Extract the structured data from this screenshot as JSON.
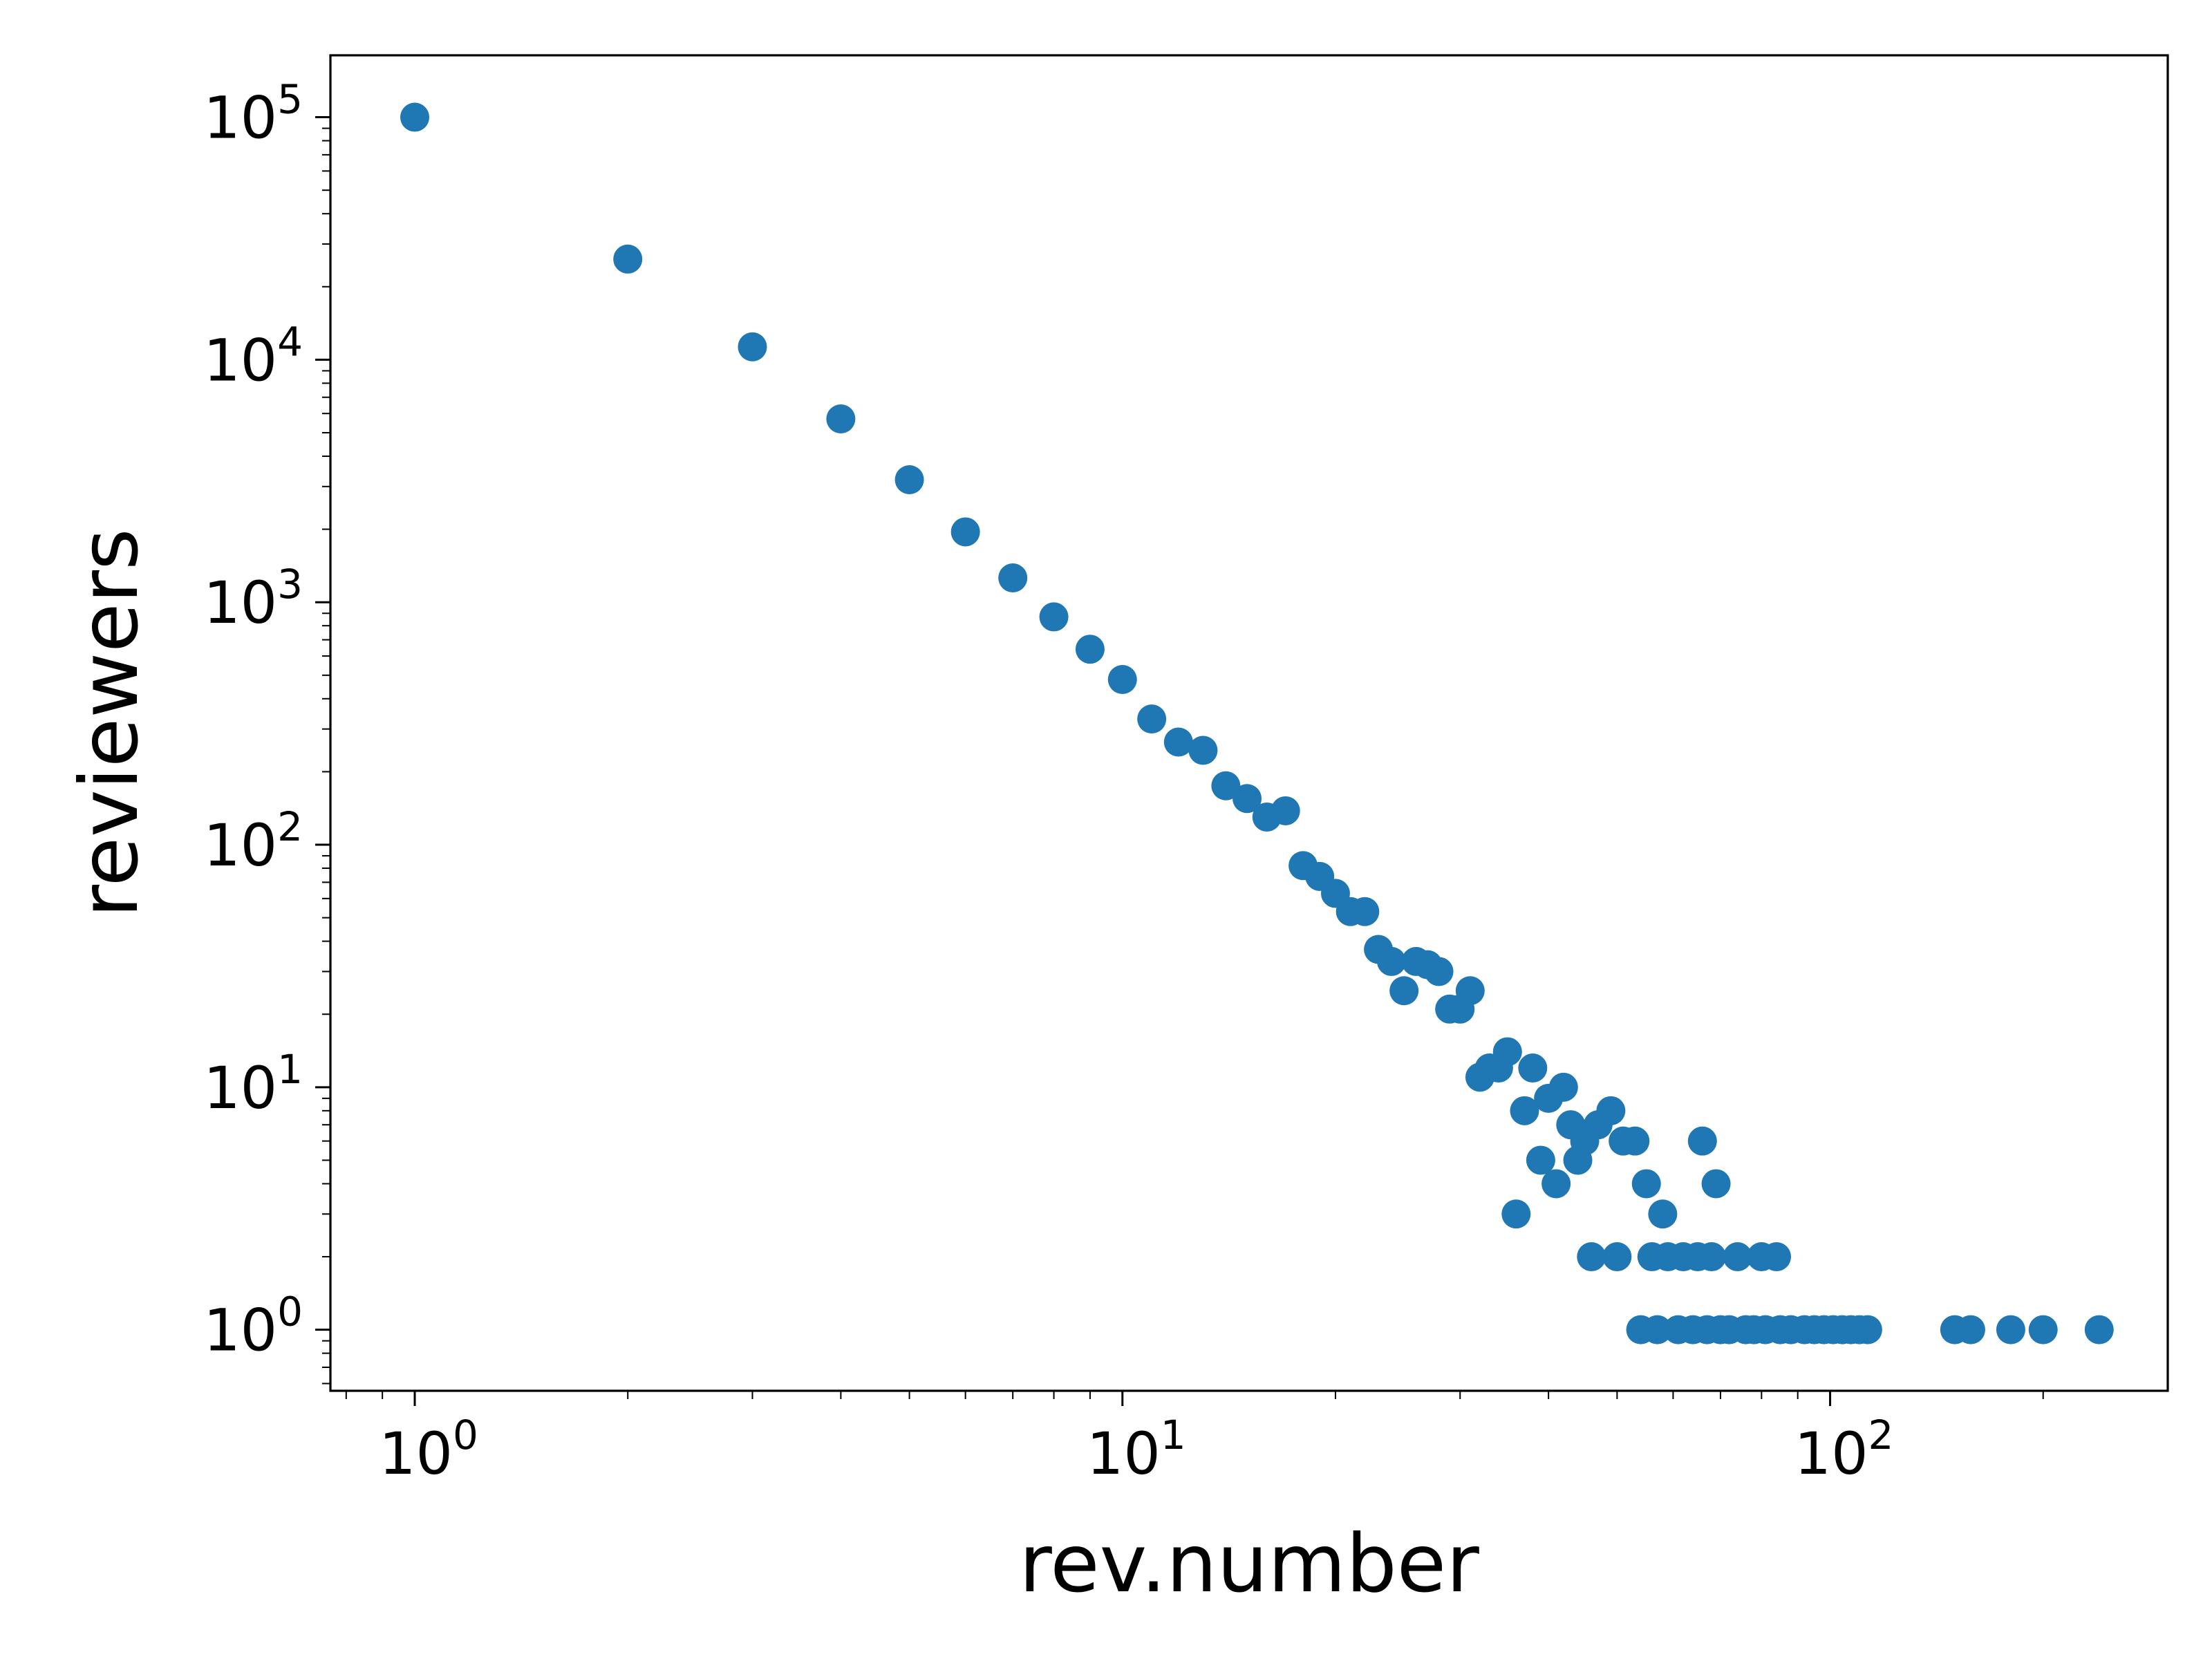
{
  "chart_data": {
    "type": "scatter",
    "xlabel": "rev.number",
    "ylabel": "reviewers",
    "xscale": "log",
    "yscale": "log",
    "xlim": [
      0.76,
      300
    ],
    "ylim": [
      0.56,
      180000
    ],
    "grid": false,
    "x_ticks": [
      {
        "value": 1,
        "base": "10",
        "exp": "0"
      },
      {
        "value": 10,
        "base": "10",
        "exp": "1"
      },
      {
        "value": 100,
        "base": "10",
        "exp": "2"
      }
    ],
    "y_ticks": [
      {
        "value": 1,
        "base": "10",
        "exp": "0"
      },
      {
        "value": 10,
        "base": "10",
        "exp": "1"
      },
      {
        "value": 100,
        "base": "10",
        "exp": "2"
      },
      {
        "value": 1000,
        "base": "10",
        "exp": "3"
      },
      {
        "value": 10000,
        "base": "10",
        "exp": "4"
      },
      {
        "value": 100000,
        "base": "10",
        "exp": "5"
      }
    ],
    "marker_color": "#1f77b4",
    "series": [
      {
        "points": [
          [
            1,
            100000
          ],
          [
            2,
            26000
          ],
          [
            3,
            11300
          ],
          [
            4,
            5700
          ],
          [
            5,
            3200
          ],
          [
            6,
            1950
          ],
          [
            7,
            1260
          ],
          [
            8,
            870
          ],
          [
            9,
            640
          ],
          [
            10,
            480
          ],
          [
            11,
            330
          ],
          [
            12,
            265
          ],
          [
            13,
            245
          ],
          [
            14,
            175
          ],
          [
            15,
            155
          ],
          [
            16,
            130
          ],
          [
            17,
            138
          ],
          [
            18,
            82
          ],
          [
            19,
            74
          ],
          [
            20,
            63
          ],
          [
            21,
            53
          ],
          [
            22,
            53
          ],
          [
            23,
            37
          ],
          [
            24,
            33
          ],
          [
            25,
            25
          ],
          [
            26,
            33
          ],
          [
            27,
            32
          ],
          [
            28,
            30
          ],
          [
            29,
            21
          ],
          [
            30,
            21
          ],
          [
            31,
            25
          ],
          [
            32,
            11
          ],
          [
            33,
            12
          ],
          [
            34,
            12
          ],
          [
            35,
            14
          ],
          [
            36,
            3
          ],
          [
            37,
            8
          ],
          [
            38,
            12
          ],
          [
            39,
            5
          ],
          [
            40,
            9
          ],
          [
            41,
            4
          ],
          [
            42,
            10
          ],
          [
            43,
            7
          ],
          [
            44,
            5
          ],
          [
            45,
            6
          ],
          [
            46,
            2
          ],
          [
            47,
            7
          ],
          [
            49,
            8
          ],
          [
            50,
            2
          ],
          [
            51,
            6
          ],
          [
            53,
            6
          ],
          [
            54,
            1
          ],
          [
            55,
            4
          ],
          [
            56,
            2
          ],
          [
            57,
            1
          ],
          [
            58,
            3
          ],
          [
            59,
            2
          ],
          [
            61,
            1
          ],
          [
            62,
            2
          ],
          [
            64,
            1
          ],
          [
            65,
            2
          ],
          [
            66,
            6
          ],
          [
            67,
            1
          ],
          [
            68,
            2
          ],
          [
            69,
            4
          ],
          [
            70,
            1
          ],
          [
            72,
            1
          ],
          [
            74,
            2
          ],
          [
            76,
            1
          ],
          [
            78,
            1
          ],
          [
            80,
            2
          ],
          [
            81,
            1
          ],
          [
            84,
            2
          ],
          [
            85,
            1
          ],
          [
            88,
            1
          ],
          [
            92,
            1
          ],
          [
            95,
            1
          ],
          [
            98,
            1
          ],
          [
            101,
            1
          ],
          [
            104,
            1
          ],
          [
            107,
            1
          ],
          [
            110,
            1
          ],
          [
            113,
            1
          ],
          [
            150,
            1
          ],
          [
            158,
            1
          ],
          [
            180,
            1
          ],
          [
            200,
            1
          ],
          [
            240,
            1
          ]
        ]
      }
    ]
  }
}
